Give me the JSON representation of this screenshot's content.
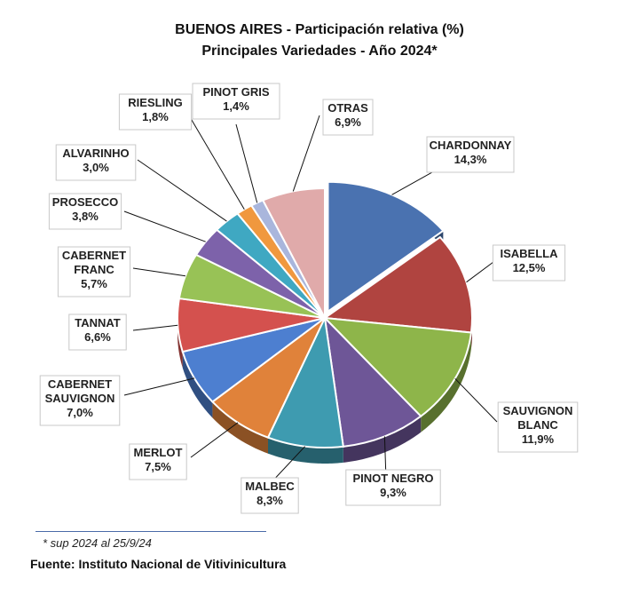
{
  "chart_data": {
    "type": "pie",
    "title": "BUENOS AIRES - Participación relativa (%)",
    "subtitle": "Principales Variedades  - Año 2024*",
    "unit": "%",
    "slices": [
      {
        "label": [
          "CHARDONNAY"
        ],
        "value": 14.3,
        "display": "14,3%",
        "color": "#4a72b0"
      },
      {
        "label": [
          "ISABELLA"
        ],
        "value": 12.5,
        "display": "12,5%",
        "color": "#b04440"
      },
      {
        "label": [
          "SAUVIGNON",
          "BLANC"
        ],
        "value": 11.9,
        "display": "11,9%",
        "color": "#8eb54a"
      },
      {
        "label": [
          "PINOT NEGRO"
        ],
        "value": 9.3,
        "display": "9,3%",
        "color": "#6e5697"
      },
      {
        "label": [
          "MALBEC"
        ],
        "value": 8.3,
        "display": "8,3%",
        "color": "#3e9bb0"
      },
      {
        "label": [
          "MERLOT"
        ],
        "value": 7.5,
        "display": "7,5%",
        "color": "#e0823a"
      },
      {
        "label": [
          "CABERNET",
          "SAUVIGNON"
        ],
        "value": 7.0,
        "display": "7,0%",
        "color": "#4d7fd0"
      },
      {
        "label": [
          "TANNAT"
        ],
        "value": 6.6,
        "display": "6,6%",
        "color": "#d4514e"
      },
      {
        "label": [
          "CABERNET",
          "FRANC"
        ],
        "value": 5.7,
        "display": "5,7%",
        "color": "#98c256"
      },
      {
        "label": [
          "PROSECCO"
        ],
        "value": 3.8,
        "display": "3,8%",
        "color": "#7d62aa"
      },
      {
        "label": [
          "ALVARINHO"
        ],
        "value": 3.0,
        "display": "3,0%",
        "color": "#3fa8c2"
      },
      {
        "label": [
          "RIESLING"
        ],
        "value": 1.8,
        "display": "1,8%",
        "color": "#f0983e"
      },
      {
        "label": [
          "PINOT GRIS"
        ],
        "value": 1.4,
        "display": "1,4%",
        "color": "#a9b6dc"
      },
      {
        "label": [
          "OTRAS"
        ],
        "value": 6.9,
        "display": "6,9%",
        "color": "#e0aaaa"
      }
    ],
    "legend": "none"
  },
  "footnote": "* sup 2024 al 25/9/24",
  "source": "Fuente: Instituto Nacional de Vitivinicultura"
}
